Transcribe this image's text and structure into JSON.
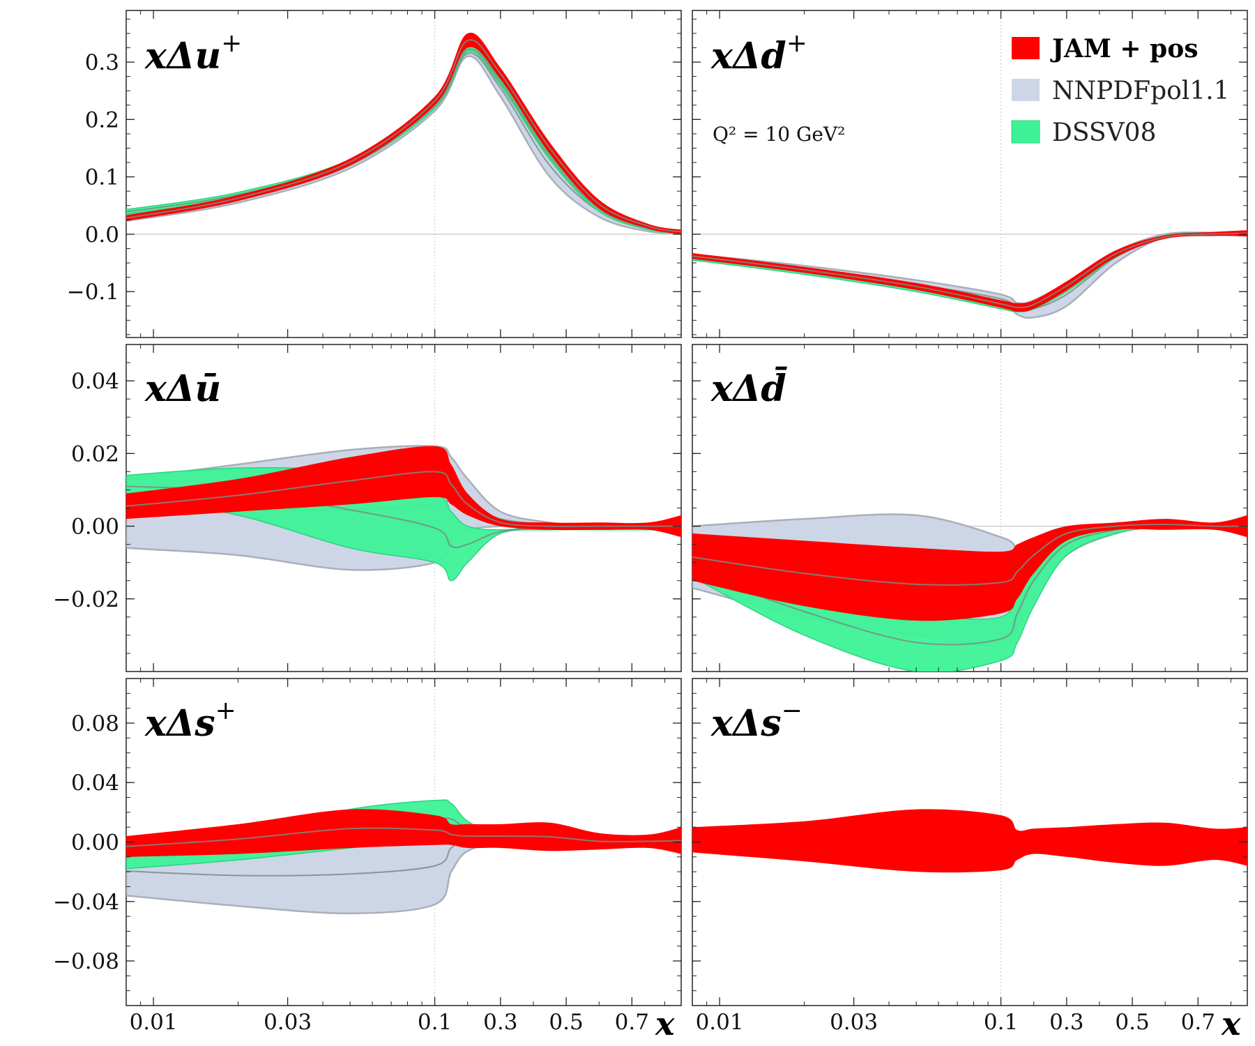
{
  "chart_data": {
    "type": "area",
    "xscale": "log-linear (log below x=0.1, linear above)",
    "xlabel": "x",
    "x_ticks": [
      "0.01",
      "0.03",
      "0.1",
      "0.3",
      "0.5",
      "0.7"
    ],
    "legend": {
      "placement": "top-right of upper-right panel",
      "entries": [
        {
          "label": "JAM + pos",
          "color": "#ff0000",
          "bold": true
        },
        {
          "label": "NNPDFpol1.1",
          "color": "#ccd6e6",
          "bold": false
        },
        {
          "label": "DSSV08",
          "color": "#3df296",
          "bold": false
        }
      ]
    },
    "annotation": "Q² = 10 GeV²",
    "colors": {
      "jam": "#ff0000",
      "nnpdf": "#ccd6e6",
      "nnpdf_edge": "#a9afb9",
      "dssv": "#3df296",
      "dssv_edge": "#2ad480",
      "central": "#7e8a84"
    },
    "panels": [
      {
        "id": "du_plus",
        "title": "xΔu",
        "title_sup": "+",
        "ylim": [
          -0.18,
          0.39
        ],
        "yticks": [
          "0.3",
          "0.2",
          "0.1",
          "0.0",
          "−0.1"
        ],
        "ytick_values": [
          0.3,
          0.2,
          0.1,
          0.0,
          -0.1
        ],
        "x": [
          0.008,
          0.02,
          0.05,
          0.1,
          0.2,
          0.3,
          0.45,
          0.6,
          0.75,
          0.85
        ],
        "series": [
          {
            "name": "NNPDFpol1.1",
            "lower": [
              0.023,
              0.055,
              0.115,
              0.215,
              0.31,
              0.24,
              0.1,
              0.03,
              0.005,
              0.002
            ],
            "upper": [
              0.033,
              0.065,
              0.125,
              0.225,
              0.32,
              0.27,
              0.14,
              0.05,
              0.012,
              0.005
            ]
          },
          {
            "name": "DSSV08",
            "lower": [
              0.035,
              0.065,
              0.122,
              0.22,
              0.318,
              0.26,
              0.13,
              0.04,
              0.008,
              0.003
            ],
            "upper": [
              0.043,
              0.073,
              0.13,
              0.228,
              0.326,
              0.27,
              0.14,
              0.048,
              0.012,
              0.005
            ]
          },
          {
            "name": "JAM + pos",
            "lower": [
              0.023,
              0.058,
              0.12,
              0.225,
              0.325,
              0.27,
              0.14,
              0.045,
              0.01,
              0.0
            ],
            "upper": [
              0.033,
              0.068,
              0.132,
              0.24,
              0.35,
              0.29,
              0.16,
              0.06,
              0.018,
              0.008
            ]
          }
        ]
      },
      {
        "id": "dd_plus",
        "title": "xΔd",
        "title_sup": "+",
        "ylim": [
          -0.18,
          0.39
        ],
        "yticks": [],
        "ytick_values": [
          0.3,
          0.2,
          0.1,
          0.0,
          -0.1
        ],
        "x": [
          0.008,
          0.02,
          0.05,
          0.1,
          0.15,
          0.2,
          0.3,
          0.45,
          0.6,
          0.75,
          0.85
        ],
        "series": [
          {
            "name": "NNPDFpol1.1",
            "lower": [
              -0.045,
              -0.065,
              -0.095,
              -0.12,
              -0.14,
              -0.145,
              -0.125,
              -0.05,
              -0.005,
              0.0,
              0.0
            ],
            "upper": [
              -0.035,
              -0.055,
              -0.08,
              -0.105,
              -0.12,
              -0.115,
              -0.085,
              -0.03,
              0.0,
              0.003,
              0.005
            ]
          },
          {
            "name": "DSSV08",
            "lower": [
              -0.045,
              -0.07,
              -0.1,
              -0.13,
              -0.135,
              -0.13,
              -0.1,
              -0.04,
              -0.005,
              0.0,
              0.0
            ],
            "upper": [
              -0.038,
              -0.063,
              -0.092,
              -0.122,
              -0.128,
              -0.122,
              -0.092,
              -0.034,
              -0.002,
              0.002,
              0.003
            ]
          },
          {
            "name": "JAM + pos",
            "lower": [
              -0.043,
              -0.067,
              -0.097,
              -0.128,
              -0.135,
              -0.13,
              -0.098,
              -0.04,
              -0.008,
              -0.003,
              -0.004
            ],
            "upper": [
              -0.033,
              -0.057,
              -0.085,
              -0.115,
              -0.12,
              -0.115,
              -0.082,
              -0.028,
              -0.002,
              0.004,
              0.007
            ]
          }
        ]
      },
      {
        "id": "dubar",
        "title": "xΔū",
        "title_sup": "",
        "ylim": [
          -0.04,
          0.05
        ],
        "yticks": [
          "0.04",
          "0.02",
          "0.00",
          "−0.02"
        ],
        "ytick_values": [
          0.04,
          0.02,
          0.0,
          -0.02
        ],
        "x": [
          0.008,
          0.02,
          0.05,
          0.1,
          0.15,
          0.2,
          0.3,
          0.45,
          0.6,
          0.75,
          0.85
        ],
        "series": [
          {
            "name": "NNPDFpol1.1",
            "lower": [
              -0.006,
              -0.008,
              -0.012,
              -0.01,
              -0.004,
              -0.001,
              0.0,
              0.0,
              0.0,
              0.0,
              0.0
            ],
            "upper": [
              0.013,
              0.017,
              0.021,
              0.022,
              0.019,
              0.013,
              0.004,
              0.001,
              0.0,
              0.0,
              0.0
            ]
          },
          {
            "name": "DSSV08",
            "lower": [
              0.008,
              0.003,
              -0.006,
              -0.01,
              -0.015,
              -0.01,
              -0.002,
              -0.001,
              -0.001,
              -0.001,
              -0.001
            ],
            "upper": [
              0.014,
              0.016,
              0.015,
              0.009,
              0.004,
              0.0,
              -0.001,
              0.0,
              0.0,
              0.0,
              0.0
            ]
          },
          {
            "name": "JAM + pos",
            "lower": [
              0.002,
              0.004,
              0.006,
              0.008,
              0.006,
              0.003,
              0.0,
              -0.001,
              -0.001,
              -0.001,
              -0.003
            ],
            "upper": [
              0.009,
              0.013,
              0.019,
              0.022,
              0.017,
              0.009,
              0.002,
              0.001,
              0.001,
              0.001,
              0.003
            ]
          }
        ]
      },
      {
        "id": "ddbar",
        "title": "xΔd̄",
        "title_sup": "",
        "ylim": [
          -0.04,
          0.05
        ],
        "yticks": [],
        "ytick_values": [
          0.04,
          0.02,
          0.0,
          -0.02
        ],
        "x": [
          0.008,
          0.02,
          0.05,
          0.1,
          0.15,
          0.2,
          0.3,
          0.45,
          0.6,
          0.75,
          0.85
        ],
        "series": [
          {
            "name": "NNPDFpol1.1",
            "lower": [
              -0.017,
              -0.025,
              -0.03,
              -0.033,
              -0.028,
              -0.02,
              -0.008,
              -0.002,
              0.0,
              0.0,
              0.0
            ],
            "upper": [
              0.0,
              0.002,
              0.003,
              -0.003,
              -0.006,
              -0.006,
              -0.002,
              0.0,
              0.0,
              0.0,
              0.0
            ]
          },
          {
            "name": "DSSV08",
            "lower": [
              -0.014,
              -0.03,
              -0.04,
              -0.037,
              -0.032,
              -0.022,
              -0.008,
              -0.002,
              0.0,
              0.0,
              0.0
            ],
            "upper": [
              -0.011,
              -0.017,
              -0.024,
              -0.025,
              -0.016,
              -0.008,
              -0.002,
              0.0,
              0.0,
              0.0,
              0.0
            ]
          },
          {
            "name": "JAM + pos",
            "lower": [
              -0.015,
              -0.022,
              -0.026,
              -0.024,
              -0.02,
              -0.013,
              -0.004,
              -0.001,
              -0.001,
              -0.001,
              -0.003
            ],
            "upper": [
              -0.002,
              -0.004,
              -0.006,
              -0.007,
              -0.005,
              -0.003,
              0.0,
              0.001,
              0.002,
              0.001,
              0.003
            ]
          }
        ]
      },
      {
        "id": "ds_plus",
        "title": "xΔs",
        "title_sup": "+",
        "ylim": [
          -0.11,
          0.11
        ],
        "yticks": [
          "0.08",
          "0.04",
          "0.00",
          "−0.04",
          "−0.08"
        ],
        "ytick_values": [
          0.08,
          0.04,
          0.0,
          -0.04,
          -0.08
        ],
        "x": [
          0.008,
          0.02,
          0.05,
          0.1,
          0.15,
          0.2,
          0.3,
          0.45,
          0.6,
          0.75,
          0.85
        ],
        "series": [
          {
            "name": "NNPDFpol1.1",
            "lower": [
              -0.036,
              -0.043,
              -0.048,
              -0.042,
              -0.02,
              -0.006,
              -0.001,
              0.0,
              0.0,
              0.0,
              0.0
            ],
            "upper": [
              -0.003,
              -0.002,
              0.005,
              0.01,
              0.012,
              0.01,
              0.004,
              0.001,
              0.0,
              0.0,
              0.0
            ]
          },
          {
            "name": "DSSV08",
            "lower": [
              -0.018,
              -0.012,
              -0.004,
              0.002,
              0.005,
              0.004,
              0.001,
              0.0,
              0.0,
              0.0,
              0.0
            ],
            "upper": [
              -0.002,
              0.006,
              0.022,
              0.028,
              0.026,
              0.014,
              0.004,
              0.001,
              0.0,
              0.0,
              0.0
            ]
          },
          {
            "name": "JAM + pos",
            "lower": [
              -0.01,
              -0.008,
              -0.004,
              -0.002,
              -0.002,
              -0.004,
              -0.004,
              -0.006,
              -0.005,
              -0.004,
              -0.008
            ],
            "upper": [
              0.004,
              0.012,
              0.022,
              0.018,
              0.012,
              0.012,
              0.012,
              0.013,
              0.006,
              0.005,
              0.01
            ]
          }
        ]
      },
      {
        "id": "ds_minus",
        "title": "xΔs",
        "title_sup": "−",
        "ylim": [
          -0.11,
          0.11
        ],
        "yticks": [],
        "ytick_values": [
          0.08,
          0.04,
          0.0,
          -0.04,
          -0.08
        ],
        "x": [
          0.008,
          0.02,
          0.05,
          0.1,
          0.15,
          0.2,
          0.3,
          0.45,
          0.6,
          0.75,
          0.85
        ],
        "series": [
          {
            "name": "JAM + pos",
            "lower": [
              -0.007,
              -0.013,
              -0.02,
              -0.019,
              -0.012,
              -0.008,
              -0.01,
              -0.014,
              -0.016,
              -0.012,
              -0.016
            ],
            "upper": [
              0.01,
              0.014,
              0.022,
              0.018,
              0.008,
              0.009,
              0.01,
              0.012,
              0.013,
              0.009,
              0.01
            ]
          }
        ]
      }
    ]
  }
}
